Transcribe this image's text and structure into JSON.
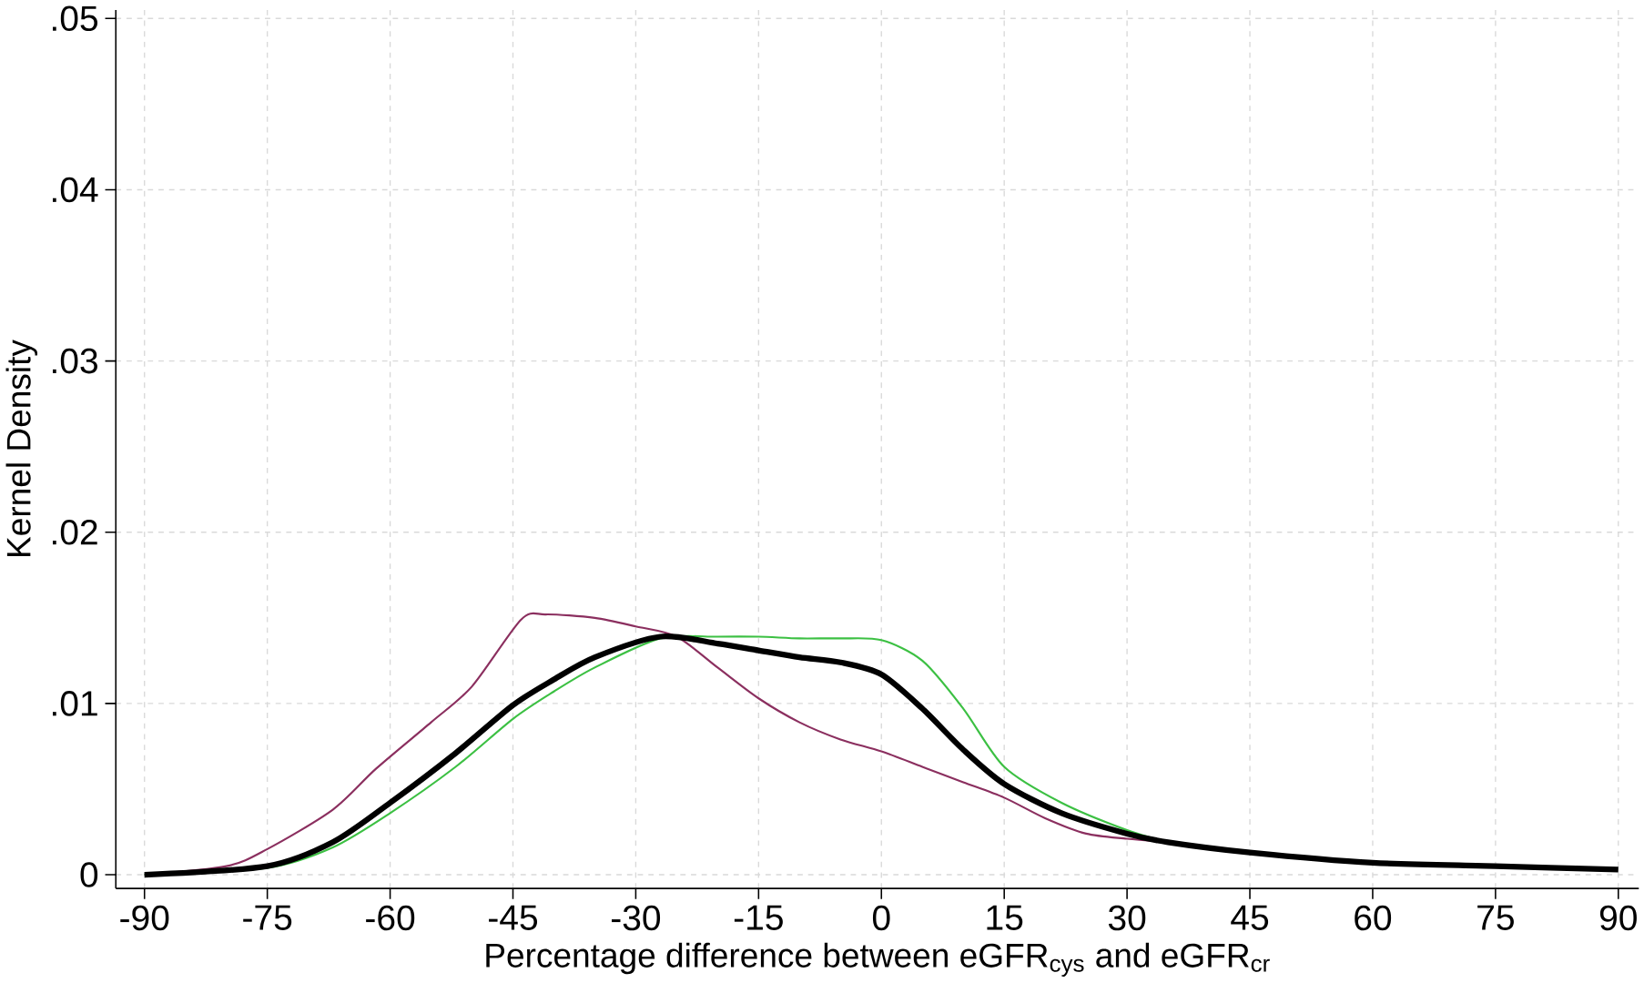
{
  "chart_data": {
    "type": "line",
    "xlabel": "Percentage difference between eGFR$_{cys}$ and eGFR$_{cr}$",
    "ylabel": "Kernel Density",
    "xlim": [
      -93.5,
      92.5
    ],
    "ylim": [
      -0.0008,
      0.0505
    ],
    "xticks": [
      -90,
      -75,
      -60,
      -45,
      -30,
      -15,
      0,
      15,
      30,
      45,
      60,
      75,
      90
    ],
    "yticks": [
      {
        "value": 0,
        "label": "0"
      },
      {
        "value": 0.01,
        "label": ".01"
      },
      {
        "value": 0.02,
        "label": ".02"
      },
      {
        "value": 0.03,
        "label": ".03"
      },
      {
        "value": 0.04,
        "label": ".04"
      },
      {
        "value": 0.05,
        "label": ".05"
      }
    ],
    "grid": true,
    "marker": "none",
    "line_style": "solid",
    "series": [
      {
        "color": "#8b2f5f",
        "x": [
          -90,
          -80,
          -75,
          -67,
          -61.7,
          -55,
          -50,
          -44,
          -41,
          -35,
          -30,
          -25,
          -20,
          -15,
          -10,
          -5,
          0,
          5,
          10,
          15,
          20,
          25,
          30,
          35
        ],
        "values": [
          0,
          0.0005,
          0.0015,
          0.0038,
          0.0062,
          0.0089,
          0.011,
          0.0149,
          0.0152,
          0.015,
          0.0145,
          0.0139,
          0.0121,
          0.0103,
          0.0089,
          0.0079,
          0.0072,
          0.0063,
          0.0054,
          0.0045,
          0.0033,
          0.0024,
          0.0021,
          0.0019
        ]
      },
      {
        "color": "#3cc043",
        "x": [
          -90,
          -75,
          -67,
          -60,
          -52,
          -45,
          -40,
          -35,
          -27,
          -20,
          -15,
          -10,
          -5,
          0,
          5,
          10,
          15,
          22,
          30,
          35
        ],
        "values": [
          0,
          0.0004,
          0.0016,
          0.0036,
          0.0063,
          0.0091,
          0.0107,
          0.0121,
          0.0138,
          0.0139,
          0.0139,
          0.0138,
          0.0138,
          0.0137,
          0.0125,
          0.0097,
          0.0063,
          0.0042,
          0.0026,
          0.0019
        ]
      },
      {
        "color": "#000000",
        "x": [
          -90,
          -75,
          -67,
          -60,
          -52,
          -45,
          -40,
          -35,
          -27,
          -20,
          -15,
          -10,
          -5,
          0,
          5,
          10,
          15,
          22,
          30,
          35,
          45,
          60,
          75,
          90
        ],
        "values": [
          0,
          0.0005,
          0.0019,
          0.0042,
          0.0071,
          0.0099,
          0.0114,
          0.0127,
          0.0139,
          0.0135,
          0.0131,
          0.0127,
          0.0124,
          0.0117,
          0.0097,
          0.0073,
          0.0053,
          0.0036,
          0.0024,
          0.0019,
          0.0013,
          0.0007,
          0.0005,
          0.0003
        ]
      }
    ]
  }
}
